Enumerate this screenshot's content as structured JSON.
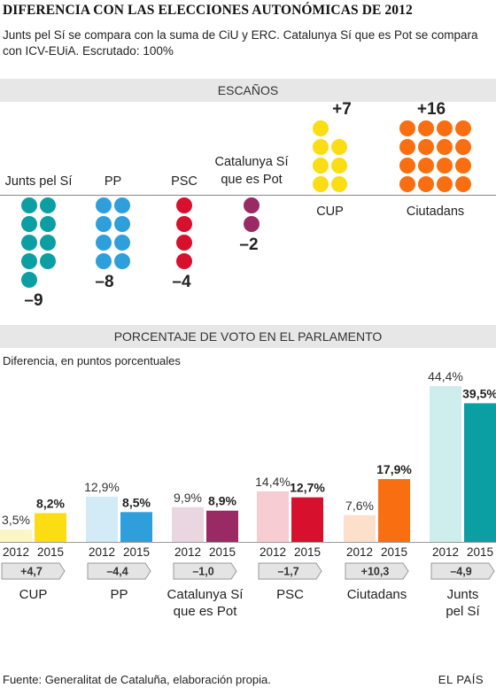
{
  "header": {
    "title": "DIFERENCIA CON LAS ELECCIONES AUTONÓMICAS DE 2012",
    "subtitle": "Junts pel Sí se compara con la suma de CiU y ERC. Catalunya Sí que es Pot se compara con ICV-EUiA. Escrutado: 100%"
  },
  "sections": {
    "seats_title": "ESCAÑOS",
    "vote_title": "PORCENTAJE DE VOTO EN EL PARLAMENTO",
    "vote_note": "Diferencia, en puntos porcentuales"
  },
  "footer": {
    "source": "Fuente: Generalitat de Cataluña, elaboración propia.",
    "brand": "EL PAÍS"
  },
  "chart_data": [
    {
      "type": "dot",
      "series": [
        {
          "name": "Junts pel Sí",
          "value": -9,
          "label": "–9",
          "color": "#0b9fa4"
        },
        {
          "name": "PP",
          "value": -8,
          "label": "–8",
          "color": "#2f9fdc"
        },
        {
          "name": "PSC",
          "value": -4,
          "label": "–4",
          "color": "#d7102d"
        },
        {
          "name": "Catalunya Sí que es Pot",
          "value": -2,
          "label": "–2",
          "color": "#9a2a63"
        },
        {
          "name": "CUP",
          "value": 7,
          "label": "+7",
          "color": "#fadd12"
        },
        {
          "name": "Ciutadans",
          "value": 16,
          "label": "+16",
          "color": "#fa6e12"
        }
      ]
    },
    {
      "type": "bar",
      "categories": [
        "CUP",
        "PP",
        "Catalunya Sí que es Pot",
        "PSC",
        "Ciutadans",
        "Junts pel Sí"
      ],
      "category_lines": [
        [
          "CUP"
        ],
        [
          "PP"
        ],
        [
          "Catalunya Sí",
          "que es Pot"
        ],
        [
          "PSC"
        ],
        [
          "Ciutadans"
        ],
        [
          "Junts",
          "pel Sí"
        ]
      ],
      "year_labels": [
        "2012",
        "2015"
      ],
      "series": [
        {
          "name": "2012",
          "values": [
            3.5,
            12.9,
            9.9,
            14.4,
            7.6,
            44.4
          ],
          "labels": [
            "3,5%",
            "12,9%",
            "9,9%",
            "14,4%",
            "7,6%",
            "44,4%"
          ]
        },
        {
          "name": "2015",
          "values": [
            8.2,
            8.5,
            8.9,
            12.7,
            17.9,
            39.5
          ],
          "labels": [
            "8,2%",
            "8,5%",
            "8,9%",
            "12,7%",
            "17,9%",
            "39,5%"
          ]
        }
      ],
      "differences": [
        "+4,7",
        "–4,4",
        "–1,0",
        "–1,7",
        "+10,3",
        "–4,9"
      ],
      "colors_2012": [
        "#fcf6c2",
        "#d3eaf7",
        "#ead6e0",
        "#f7ccd3",
        "#fde0cc",
        "#cdeeed"
      ],
      "colors_2015": [
        "#fadd12",
        "#2f9fdc",
        "#9a2a63",
        "#d7102d",
        "#fa6e12",
        "#0b9fa4"
      ]
    }
  ]
}
